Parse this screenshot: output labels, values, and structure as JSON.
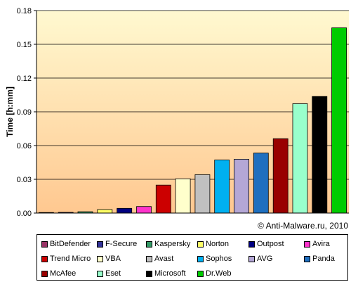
{
  "chart_data": {
    "type": "bar",
    "title": "",
    "xlabel": "",
    "ylabel": "Time [h:mm]",
    "ylim": [
      0,
      0.18
    ],
    "yticks": [
      "0.00",
      "0.03",
      "0.06",
      "0.09",
      "0.12",
      "0.15",
      "0.18"
    ],
    "grid": "horizontal",
    "legend_position": "bottom",
    "copyright": "© Anti-Malware.ru,  2010",
    "categories": [
      "BitDefender",
      "F-Secure",
      "Kaspersky",
      "Norton",
      "Outpost",
      "Avira",
      "Trend Micro",
      "VBA",
      "Avast",
      "Sophos",
      "AVG",
      "Panda",
      "McAfee",
      "Eset",
      "Microsoft",
      "Dr.Web"
    ],
    "values": [
      0.0005,
      0.0006,
      0.0012,
      0.0031,
      0.0042,
      0.0058,
      0.0249,
      0.0305,
      0.0341,
      0.0472,
      0.0479,
      0.0533,
      0.0661,
      0.0972,
      0.1036,
      0.1646
    ],
    "colors": [
      "#993366",
      "#333399",
      "#339966",
      "#ffff66",
      "#000080",
      "#ff33cc",
      "#cc0000",
      "#ffffcc",
      "#c0c0c0",
      "#00b0f0",
      "#b4a7d6",
      "#1f6fbf",
      "#990000",
      "#99ffcc",
      "#000000",
      "#00cc00"
    ],
    "background_gradient": [
      "#fff9d0",
      "#ffc890"
    ]
  }
}
